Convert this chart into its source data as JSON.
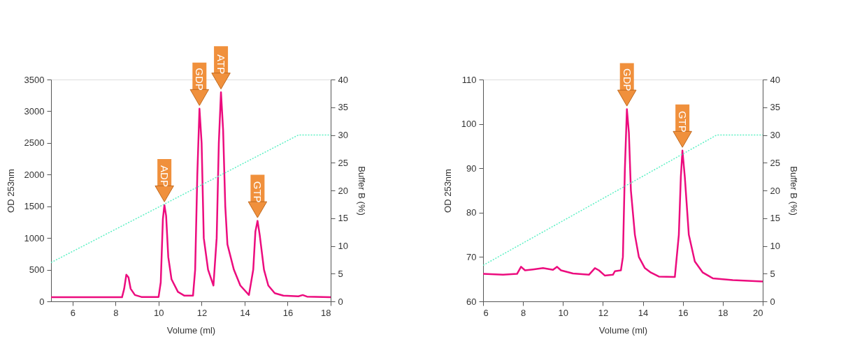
{
  "chart_data": [
    {
      "type": "line",
      "xlabel": "Volume (ml)",
      "ylabel": "OD 253nm",
      "y2label": "Buffer B (%)",
      "xlim": [
        5,
        18
      ],
      "xticks": [
        6,
        8,
        10,
        12,
        14,
        16,
        18
      ],
      "ylim": [
        0,
        3500
      ],
      "yticks": [
        0,
        500,
        1000,
        1500,
        2000,
        2500,
        3000,
        3500
      ],
      "y2lim": [
        0,
        40
      ],
      "y2ticks": [
        0,
        5,
        10,
        15,
        20,
        25,
        30,
        35,
        40
      ],
      "grid": false,
      "legend": false,
      "series": [
        {
          "color": "#ec0c7e",
          "x": [
            5,
            8.3,
            8.4,
            8.5,
            8.6,
            8.7,
            8.9,
            9.2,
            10.0,
            10.1,
            10.2,
            10.27,
            10.35,
            10.45,
            10.6,
            10.9,
            11.2,
            11.6,
            11.7,
            11.8,
            11.9,
            12.0,
            12.1,
            12.3,
            12.55,
            12.7,
            12.8,
            12.9,
            13.0,
            13.1,
            13.2,
            13.5,
            13.8,
            14.2,
            14.4,
            14.5,
            14.6,
            14.7,
            14.9,
            15.1,
            15.4,
            15.8,
            16.5,
            16.7,
            16.9,
            18
          ],
          "values": [
            65,
            65,
            200,
            420,
            380,
            200,
            100,
            70,
            70,
            300,
            1300,
            1520,
            1350,
            700,
            350,
            150,
            90,
            90,
            500,
            2000,
            3040,
            2500,
            1000,
            500,
            250,
            1000,
            2500,
            3300,
            2700,
            1500,
            900,
            500,
            250,
            100,
            500,
            1100,
            1270,
            1050,
            500,
            250,
            130,
            90,
            80,
            100,
            75,
            65
          ]
        },
        {
          "color": "#5cf0c4",
          "axis": "y2",
          "line_style": "dotted",
          "x": [
            5,
            16.5,
            18
          ],
          "values": [
            7,
            30,
            30
          ]
        }
      ],
      "annotations": [
        {
          "text": "ADP",
          "x": 10.27,
          "y": 1520
        },
        {
          "text": "GDP",
          "x": 11.9,
          "y": 3040
        },
        {
          "text": "ATP",
          "x": 12.9,
          "y": 3300
        },
        {
          "text": "GTP",
          "x": 14.6,
          "y": 1270
        }
      ]
    },
    {
      "type": "line",
      "xlabel": "Volume (ml)",
      "ylabel": "OD 253nm",
      "y2label": "Buffer B (%)",
      "xlim": [
        6,
        20
      ],
      "xticks": [
        6,
        8,
        10,
        12,
        14,
        16,
        18,
        20
      ],
      "ylim": [
        60,
        110
      ],
      "yticks": [
        60,
        70,
        80,
        90,
        100,
        110
      ],
      "y2lim": [
        0,
        40
      ],
      "y2ticks": [
        0,
        5,
        10,
        15,
        20,
        25,
        30,
        35,
        40
      ],
      "grid": false,
      "legend": false,
      "series": [
        {
          "color": "#ec0c7e",
          "x": [
            6,
            7,
            7.7,
            7.9,
            8.1,
            8.5,
            9,
            9.5,
            9.7,
            9.9,
            10.5,
            11.3,
            11.6,
            11.8,
            12.1,
            12.5,
            12.6,
            12.9,
            13.0,
            13.1,
            13.2,
            13.3,
            13.4,
            13.6,
            13.8,
            14.1,
            14.4,
            14.8,
            15.6,
            15.8,
            15.9,
            15.98,
            16.1,
            16.3,
            16.6,
            17,
            17.5,
            18.5,
            20
          ],
          "values": [
            66.2,
            66.0,
            66.2,
            67.8,
            67.0,
            67.2,
            67.5,
            67.1,
            67.8,
            67.0,
            66.3,
            66.0,
            67.5,
            67.0,
            65.8,
            66.0,
            66.8,
            67.0,
            70,
            90,
            103.3,
            98,
            85,
            75,
            70,
            67.5,
            66.5,
            65.6,
            65.5,
            75,
            88,
            94,
            88,
            75,
            69,
            66.5,
            65.2,
            64.8,
            64.5
          ]
        },
        {
          "color": "#5cf0c4",
          "axis": "y2",
          "line_style": "dotted",
          "x": [
            6,
            17.7,
            20
          ],
          "values": [
            6.5,
            30,
            30
          ]
        }
      ],
      "annotations": [
        {
          "text": "GDP",
          "x": 13.2,
          "y": 103.3
        },
        {
          "text": "GTP",
          "x": 15.98,
          "y": 94
        }
      ]
    }
  ]
}
